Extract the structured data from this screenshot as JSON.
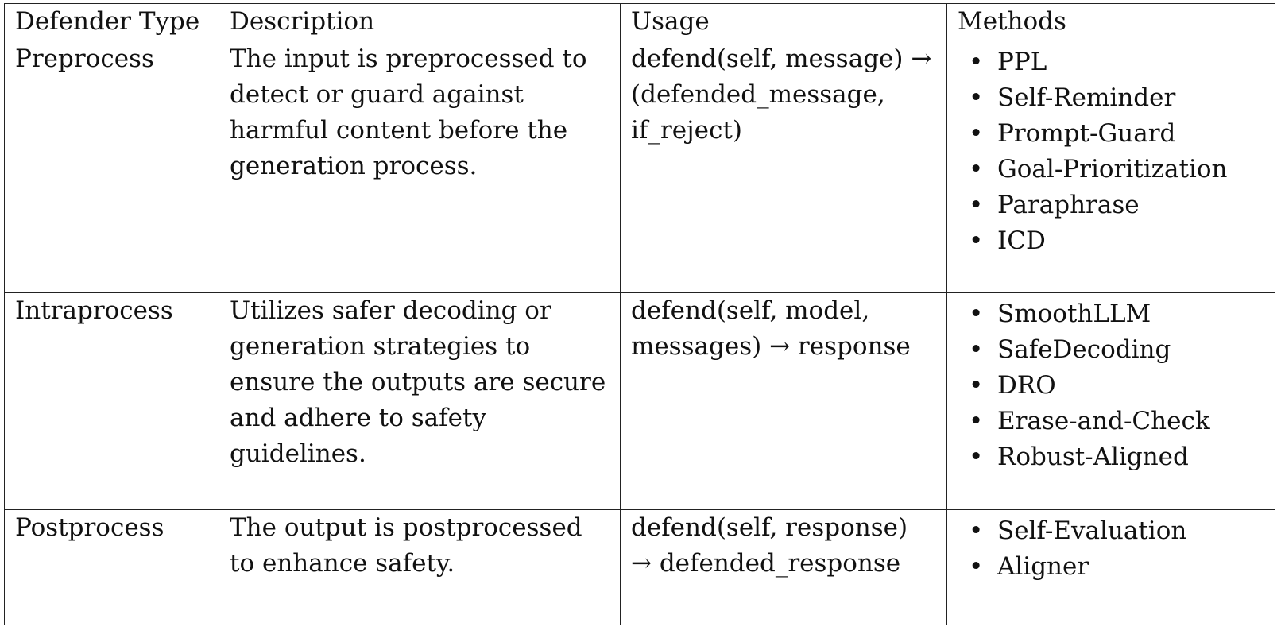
{
  "table": {
    "headers": [
      "Defender Type",
      "Description",
      "Usage",
      "Methods"
    ],
    "rows": [
      {
        "type": "Preprocess",
        "description": "The input is preprocessed to detect or guard against harmful content before the generation process.",
        "usage": "defend(self, message) → (defended_message, if_reject)",
        "methods": [
          "PPL",
          "Self-Reminder",
          "Prompt-Guard",
          "Goal-Prioritization",
          "Paraphrase",
          "ICD"
        ]
      },
      {
        "type": "Intraprocess",
        "description": "Utilizes safer decoding or generation strategies to ensure the outputs are secure and adhere to safety guidelines.",
        "usage": "defend(self, model, messages) → response",
        "methods": [
          "SmoothLLM",
          "SafeDecoding",
          "DRO",
          "Erase-and-Check",
          "Robust-Aligned"
        ]
      },
      {
        "type": "Postprocess",
        "description": "The output is postprocessed to enhance safety.",
        "usage": "defend(self, response) → defended_response",
        "methods": [
          "Self-Evaluation",
          "Aligner"
        ]
      }
    ]
  }
}
